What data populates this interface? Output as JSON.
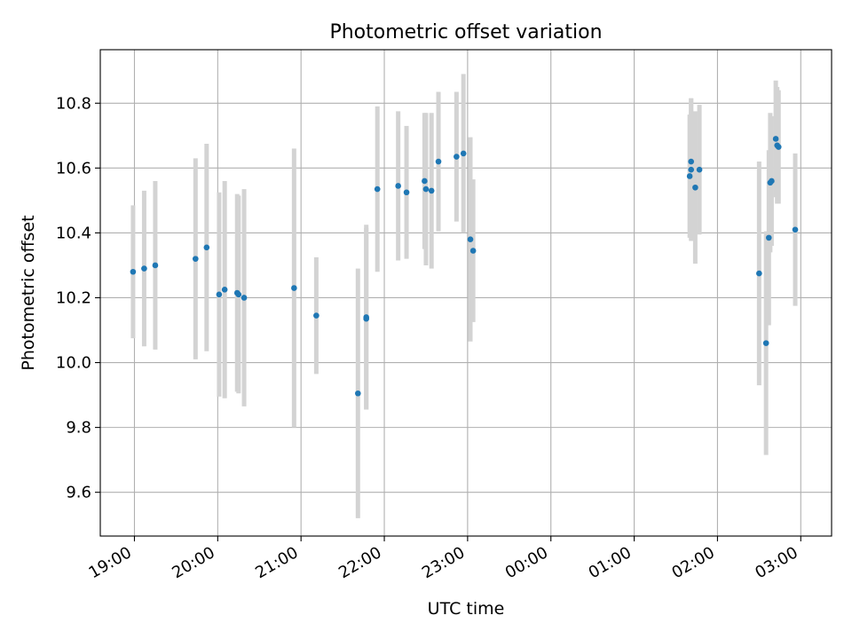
{
  "chart_data": {
    "type": "scatter",
    "title": "Photometric offset variation",
    "xlabel": "UTC time",
    "ylabel": "Photometric offset",
    "x_tick_labels": [
      "19:00",
      "20:00",
      "21:00",
      "22:00",
      "23:00",
      "00:00",
      "01:00",
      "02:00",
      "03:00"
    ],
    "x_tick_hours": [
      19,
      20,
      21,
      22,
      23,
      24,
      25,
      26,
      27
    ],
    "y_ticks": [
      9.6,
      9.8,
      10.0,
      10.2,
      10.4,
      10.6,
      10.8
    ],
    "y_tick_labels": [
      "9.6",
      "9.8",
      "10.0",
      "10.2",
      "10.4",
      "10.6",
      "10.8"
    ],
    "xlim_hours": [
      18.59,
      27.37
    ],
    "ylim": [
      9.465,
      10.965
    ],
    "grid": true,
    "colors": {
      "point": "#1f77b4",
      "errorbar": "#d3d3d3",
      "grid": "#b0b0b0",
      "axes": "#000000"
    },
    "points": [
      {
        "time": "18:59",
        "y": 10.28,
        "err": 0.205
      },
      {
        "time": "19:07",
        "y": 10.29,
        "err": 0.24
      },
      {
        "time": "19:15",
        "y": 10.3,
        "err": 0.26
      },
      {
        "time": "19:44",
        "y": 10.32,
        "err": 0.31
      },
      {
        "time": "19:52",
        "y": 10.355,
        "err": 0.32
      },
      {
        "time": "20:01",
        "y": 10.21,
        "err": 0.315
      },
      {
        "time": "20:05",
        "y": 10.225,
        "err": 0.335
      },
      {
        "time": "20:14",
        "y": 10.215,
        "err": 0.305
      },
      {
        "time": "20:15",
        "y": 10.21,
        "err": 0.305
      },
      {
        "time": "20:19",
        "y": 10.2,
        "err": 0.335
      },
      {
        "time": "20:55",
        "y": 10.23,
        "err": 0.43
      },
      {
        "time": "21:11",
        "y": 10.145,
        "err": 0.18
      },
      {
        "time": "21:41",
        "y": 9.905,
        "err": 0.385
      },
      {
        "time": "21:47",
        "y": 10.135,
        "err": 0.28
      },
      {
        "time": "21:47",
        "y": 10.14,
        "err": 0.285
      },
      {
        "time": "21:55",
        "y": 10.535,
        "err": 0.255
      },
      {
        "time": "22:10",
        "y": 10.545,
        "err": 0.23
      },
      {
        "time": "22:16",
        "y": 10.525,
        "err": 0.205
      },
      {
        "time": "22:29",
        "y": 10.56,
        "err": 0.21
      },
      {
        "time": "22:30",
        "y": 10.535,
        "err": 0.235
      },
      {
        "time": "22:34",
        "y": 10.53,
        "err": 0.24
      },
      {
        "time": "22:39",
        "y": 10.62,
        "err": 0.215
      },
      {
        "time": "22:52",
        "y": 10.635,
        "err": 0.2
      },
      {
        "time": "22:57",
        "y": 10.645,
        "err": 0.245
      },
      {
        "time": "23:02",
        "y": 10.38,
        "err": 0.315
      },
      {
        "time": "23:04",
        "y": 10.345,
        "err": 0.22
      },
      {
        "time": "01:40",
        "y": 10.575,
        "err": 0.19
      },
      {
        "time": "01:41",
        "y": 10.62,
        "err": 0.195
      },
      {
        "time": "01:41",
        "y": 10.595,
        "err": 0.22
      },
      {
        "time": "01:44",
        "y": 10.54,
        "err": 0.235
      },
      {
        "time": "01:47",
        "y": 10.595,
        "err": 0.2
      },
      {
        "time": "02:30",
        "y": 10.275,
        "err": 0.345
      },
      {
        "time": "02:35",
        "y": 10.06,
        "err": 0.345
      },
      {
        "time": "02:37",
        "y": 10.385,
        "err": 0.27
      },
      {
        "time": "02:38",
        "y": 10.555,
        "err": 0.215
      },
      {
        "time": "02:39",
        "y": 10.56,
        "err": 0.2
      },
      {
        "time": "02:42",
        "y": 10.69,
        "err": 0.18
      },
      {
        "time": "02:43",
        "y": 10.67,
        "err": 0.18
      },
      {
        "time": "02:44",
        "y": 10.665,
        "err": 0.175
      },
      {
        "time": "02:56",
        "y": 10.41,
        "err": 0.235
      }
    ]
  }
}
